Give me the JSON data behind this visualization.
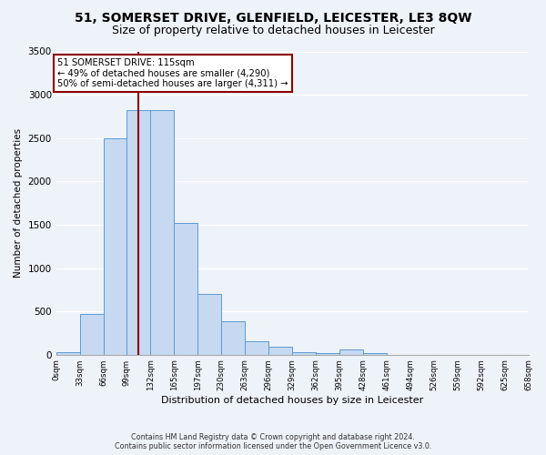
{
  "title": "51, SOMERSET DRIVE, GLENFIELD, LEICESTER, LE3 8QW",
  "subtitle": "Size of property relative to detached houses in Leicester",
  "xlabel": "Distribution of detached houses by size in Leicester",
  "ylabel": "Number of detached properties",
  "footer_line1": "Contains HM Land Registry data © Crown copyright and database right 2024.",
  "footer_line2": "Contains public sector information licensed under the Open Government Licence v3.0.",
  "annotation_line1": "51 SOMERSET DRIVE: 115sqm",
  "annotation_line2": "← 49% of detached houses are smaller (4,290)",
  "annotation_line3": "50% of semi-detached houses are larger (4,311) →",
  "bar_values": [
    30,
    470,
    2500,
    2820,
    2820,
    1520,
    700,
    390,
    155,
    95,
    30,
    20,
    55,
    15,
    0,
    0,
    0,
    0,
    0,
    0
  ],
  "bin_labels": [
    "0sqm",
    "33sqm",
    "66sqm",
    "99sqm",
    "132sqm",
    "165sqm",
    "197sqm",
    "230sqm",
    "263sqm",
    "296sqm",
    "329sqm",
    "362sqm",
    "395sqm",
    "428sqm",
    "461sqm",
    "494sqm",
    "526sqm",
    "559sqm",
    "592sqm",
    "625sqm",
    "658sqm"
  ],
  "bar_color": "#c6d9f0",
  "bar_edge_color": "#5b9bd5",
  "property_line_x": 115,
  "bin_width": 33,
  "ylim": [
    0,
    3500
  ],
  "background_color": "#eef2f9",
  "annotation_box_color": "white",
  "annotation_box_edge": "#8b0000",
  "vline_color": "#8b0000",
  "title_fontsize": 10,
  "subtitle_fontsize": 9
}
